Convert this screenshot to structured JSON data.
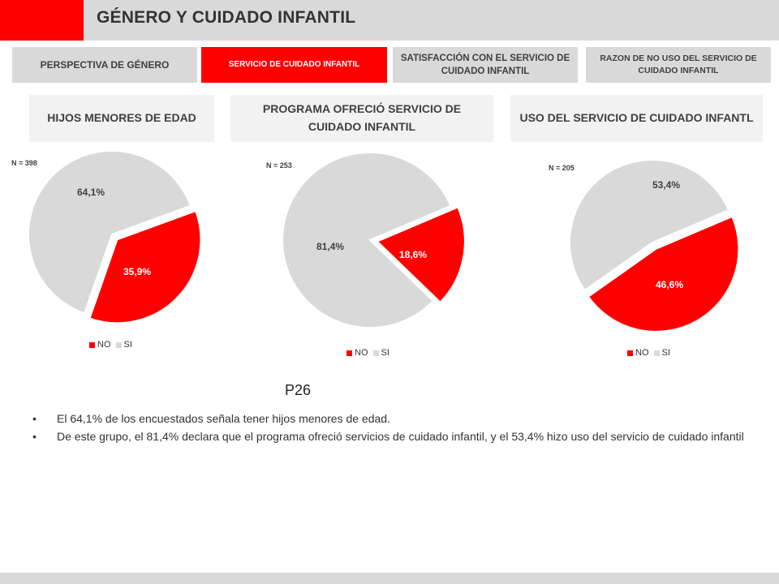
{
  "title": "GÉNERO Y CUIDADO INFANTIL",
  "tabs": [
    {
      "label": "PERSPECTIVA DE GÉNERO",
      "active": false
    },
    {
      "label": "SERVICIO DE CUIDADO INFANTIL",
      "active": true
    },
    {
      "label": "SATISFACCIÓN CON EL SERVICIO DE CUIDADO INFANTIL",
      "active": false
    },
    {
      "label": "RAZON DE NO USO DEL SERVICIO DE CUIDADO INFANTIL",
      "active": false
    }
  ],
  "sections": [
    {
      "label": "HIJOS MENORES DE EDAD"
    },
    {
      "label": "PROGRAMA OFRECIÓ SERVICIO DE CUIDADO INFANTIL"
    },
    {
      "label": "USO DEL SERVICIO DE CUIDADO INFANTL"
    }
  ],
  "colors": {
    "accent": "#ff0000",
    "gray": "#d9d9d9",
    "pie_no": "#ff0000",
    "pie_si": "#d9d9d9"
  },
  "chart_data": [
    {
      "type": "pie",
      "n_label": "N = 398",
      "categories": [
        "NO",
        "SI"
      ],
      "values": [
        35.9,
        64.1
      ],
      "labels": [
        "35,9%",
        "64,1%"
      ],
      "legend": [
        "NO",
        "SI"
      ]
    },
    {
      "type": "pie",
      "n_label": "N = 253",
      "categories": [
        "NO",
        "SI"
      ],
      "values": [
        18.6,
        81.4
      ],
      "labels": [
        "18,6%",
        "81,4%"
      ],
      "legend": [
        "NO",
        "SI"
      ]
    },
    {
      "type": "pie",
      "n_label": "N = 205",
      "categories": [
        "NO",
        "SI"
      ],
      "values": [
        46.6,
        53.4
      ],
      "labels": [
        "46,6%",
        "53,4%"
      ],
      "legend": [
        "NO",
        "SI"
      ]
    }
  ],
  "question_code": "P26",
  "bullets": [
    "El 64,1% de los encuestados señala tener hijos menores de edad.",
    "De este grupo, el 81,4% declara que el programa ofreció servicios de cuidado infantil, y el 53,4% hizo uso del servicio de cuidado infantil"
  ]
}
